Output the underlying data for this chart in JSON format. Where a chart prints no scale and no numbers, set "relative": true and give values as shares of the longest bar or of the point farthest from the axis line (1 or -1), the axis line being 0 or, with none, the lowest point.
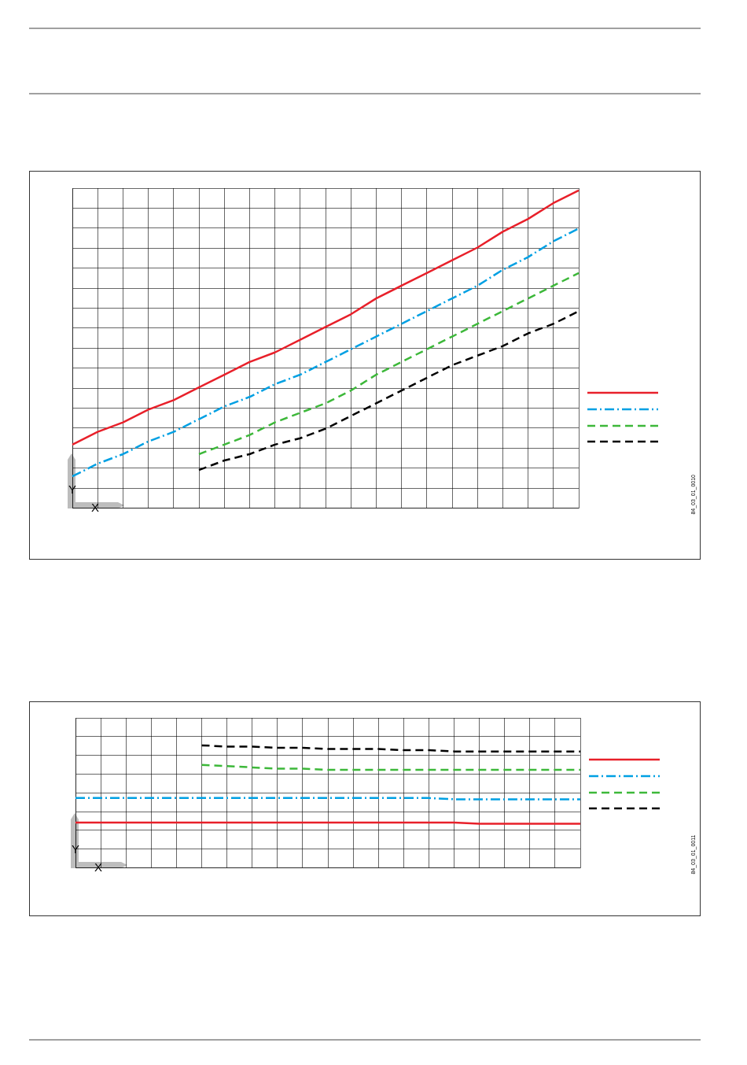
{
  "chart_data": [
    {
      "type": "line",
      "xlabel": "X",
      "ylabel": "Y",
      "relative": true,
      "grid": true,
      "marker": "none",
      "annotations": [
        "84_03_01_0010"
      ],
      "categories": [
        null,
        null,
        null,
        null,
        null,
        null,
        null,
        null,
        null,
        null,
        null,
        null,
        null,
        null,
        null,
        null,
        null,
        null,
        null,
        null,
        null
      ],
      "series": [
        {
          "color": "#e8202a",
          "line_style": "solid",
          "values": [
            0.2,
            0.24,
            0.27,
            0.31,
            0.34,
            0.38,
            0.42,
            0.46,
            0.49,
            0.53,
            0.57,
            0.61,
            0.66,
            0.7,
            0.74,
            0.78,
            0.82,
            0.87,
            0.91,
            0.96,
            1.0
          ]
        },
        {
          "color": "#00a0e3",
          "line_style": "dashdot",
          "values": [
            0.1,
            0.14,
            0.17,
            0.21,
            0.24,
            0.28,
            0.32,
            0.35,
            0.39,
            0.42,
            0.46,
            0.5,
            0.54,
            0.58,
            0.62,
            0.66,
            0.7,
            0.75,
            0.79,
            0.84,
            0.88
          ]
        },
        {
          "color": "#3db83a",
          "line_style": "dashed",
          "values": [
            null,
            null,
            null,
            null,
            null,
            0.17,
            0.2,
            0.23,
            0.27,
            0.3,
            0.33,
            0.37,
            0.42,
            0.46,
            0.5,
            0.54,
            0.58,
            0.62,
            0.66,
            0.7,
            0.74
          ]
        },
        {
          "color": "#000000",
          "line_style": "dashed",
          "values": [
            null,
            null,
            null,
            null,
            null,
            0.12,
            0.15,
            0.17,
            0.2,
            0.22,
            0.25,
            0.29,
            0.33,
            0.37,
            0.41,
            0.45,
            0.48,
            0.51,
            0.55,
            0.58,
            0.62
          ]
        }
      ]
    },
    {
      "type": "line",
      "xlabel": "X",
      "ylabel": "Y",
      "relative": true,
      "grid": true,
      "marker": "none",
      "annotations": [
        "84_03_01_0011"
      ],
      "categories": [
        null,
        null,
        null,
        null,
        null,
        null,
        null,
        null,
        null,
        null,
        null,
        null,
        null,
        null,
        null,
        null,
        null,
        null,
        null,
        null,
        null
      ],
      "series": [
        {
          "color": "#e8202a",
          "line_style": "solid",
          "values": [
            0.37,
            0.37,
            0.37,
            0.37,
            0.37,
            0.37,
            0.37,
            0.37,
            0.37,
            0.37,
            0.37,
            0.37,
            0.37,
            0.37,
            0.37,
            0.37,
            0.36,
            0.36,
            0.36,
            0.36,
            0.36
          ]
        },
        {
          "color": "#00a0e3",
          "line_style": "dashdot",
          "values": [
            0.57,
            0.57,
            0.57,
            0.57,
            0.57,
            0.57,
            0.57,
            0.57,
            0.57,
            0.57,
            0.57,
            0.57,
            0.57,
            0.57,
            0.57,
            0.56,
            0.56,
            0.56,
            0.56,
            0.56,
            0.56
          ]
        },
        {
          "color": "#3db83a",
          "line_style": "dashed",
          "values": [
            null,
            null,
            null,
            null,
            null,
            0.84,
            0.83,
            0.82,
            0.81,
            0.81,
            0.8,
            0.8,
            0.8,
            0.8,
            0.8,
            0.8,
            0.8,
            0.8,
            0.8,
            0.8,
            0.8
          ]
        },
        {
          "color": "#000000",
          "line_style": "dashed",
          "values": [
            null,
            null,
            null,
            null,
            null,
            1.0,
            0.99,
            0.99,
            0.98,
            0.98,
            0.97,
            0.97,
            0.97,
            0.96,
            0.96,
            0.95,
            0.95,
            0.95,
            0.95,
            0.95,
            0.95
          ]
        }
      ]
    }
  ]
}
